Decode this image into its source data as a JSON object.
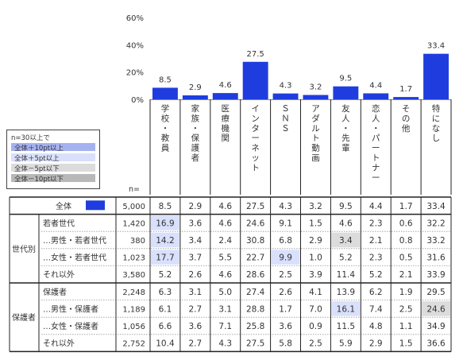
{
  "colors": {
    "bar": "#1f3dde",
    "plus10": "#a4b2f2",
    "plus5": "#d9e0fb",
    "minus5": "#dcdcdc",
    "minus10": "#b8b8b8"
  },
  "n_label": "n=",
  "legend": {
    "title": "n=30以上で",
    "items": [
      {
        "label": "全体＋10pt以上",
        "color": "#a4b2f2"
      },
      {
        "label": "全体＋5pt以上",
        "color": "#d9e0fb"
      },
      {
        "label": "全体－5pt以下",
        "color": "#dcdcdc"
      },
      {
        "label": "全体－10pt以下",
        "color": "#b8b8b8"
      }
    ]
  },
  "chart_data": {
    "type": "bar",
    "y_ticks": [
      "60%",
      "40%",
      "20%",
      "0%"
    ],
    "ylim": [
      0,
      60
    ],
    "categories": [
      "学校・教員",
      "家族・保護者",
      "医療機関",
      "インターネット",
      "ＳＮＳ",
      "アダルト動画",
      "友人・先輩",
      "恋人・パートナー",
      "その他",
      "特になし"
    ],
    "values": [
      8.5,
      2.9,
      4.6,
      27.5,
      4.3,
      3.2,
      9.5,
      4.4,
      1.7,
      33.4
    ],
    "table": {
      "total_row": {
        "label": "全体",
        "n": "5,000",
        "values": [
          "8.5",
          "2.9",
          "4.6",
          "27.5",
          "4.3",
          "3.2",
          "9.5",
          "4.4",
          "1.7",
          "33.4"
        ]
      },
      "groups": [
        {
          "label": "世代別",
          "rows": [
            {
              "label": "若者世代",
              "n": "1,420",
              "values": [
                "16.9",
                "3.6",
                "4.6",
                "24.6",
                "9.1",
                "1.5",
                "4.6",
                "2.3",
                "0.6",
                "32.2"
              ],
              "highlights": [
                "plus5",
                "",
                "",
                "",
                "",
                "",
                "",
                "",
                "",
                ""
              ]
            },
            {
              "label": "…男性・若者世代",
              "n": "380",
              "values": [
                "14.2",
                "3.4",
                "2.4",
                "30.8",
                "6.8",
                "2.9",
                "3.4",
                "2.1",
                "0.8",
                "33.2"
              ],
              "highlights": [
                "plus5",
                "",
                "",
                "",
                "",
                "",
                "minus5",
                "",
                "",
                ""
              ]
            },
            {
              "label": "…女性・若者世代",
              "n": "1,023",
              "values": [
                "17.7",
                "3.7",
                "5.5",
                "22.7",
                "9.9",
                "1.0",
                "5.2",
                "2.3",
                "0.5",
                "31.6"
              ],
              "highlights": [
                "plus5",
                "",
                "",
                "",
                "plus5",
                "",
                "",
                "",
                "",
                ""
              ]
            },
            {
              "label": "それ以外",
              "n": "3,580",
              "values": [
                "5.2",
                "2.6",
                "4.6",
                "28.6",
                "2.5",
                "3.9",
                "11.4",
                "5.2",
                "2.1",
                "33.9"
              ],
              "highlights": [
                "",
                "",
                "",
                "",
                "",
                "",
                "",
                "",
                "",
                ""
              ]
            }
          ]
        },
        {
          "label": "保護者",
          "rows": [
            {
              "label": "保護者",
              "n": "2,248",
              "values": [
                "6.3",
                "3.1",
                "5.0",
                "27.4",
                "2.6",
                "4.1",
                "13.9",
                "6.2",
                "1.9",
                "29.5"
              ],
              "highlights": [
                "",
                "",
                "",
                "",
                "",
                "",
                "",
                "",
                "",
                ""
              ]
            },
            {
              "label": "…男性・保護者",
              "n": "1,189",
              "values": [
                "6.1",
                "2.7",
                "3.1",
                "28.8",
                "1.7",
                "7.0",
                "16.1",
                "7.4",
                "2.5",
                "24.6"
              ],
              "highlights": [
                "",
                "",
                "",
                "",
                "",
                "",
                "plus5",
                "",
                "",
                "minus5"
              ]
            },
            {
              "label": "…女性・保護者",
              "n": "1,056",
              "values": [
                "6.6",
                "3.6",
                "7.1",
                "25.8",
                "3.6",
                "0.9",
                "11.5",
                "4.8",
                "1.1",
                "34.9"
              ],
              "highlights": [
                "",
                "",
                "",
                "",
                "",
                "",
                "",
                "",
                "",
                ""
              ]
            },
            {
              "label": "それ以外",
              "n": "2,752",
              "values": [
                "10.4",
                "2.7",
                "4.3",
                "27.5",
                "5.8",
                "2.5",
                "5.9",
                "2.9",
                "1.5",
                "36.6"
              ],
              "highlights": [
                "",
                "",
                "",
                "",
                "",
                "",
                "",
                "",
                "",
                ""
              ]
            }
          ]
        }
      ]
    }
  }
}
